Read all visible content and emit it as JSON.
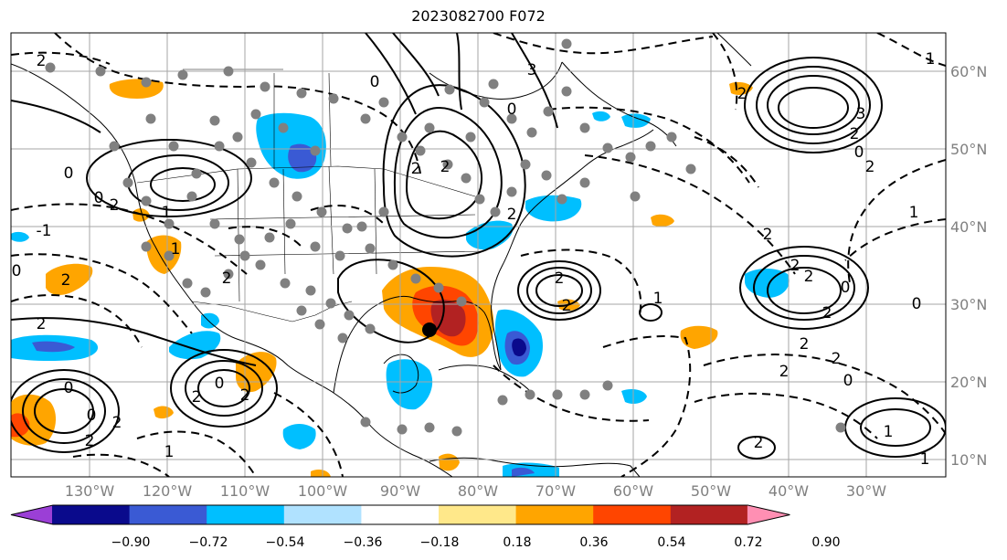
{
  "title": "2023082700 F072",
  "map": {
    "longitude_labels": [
      "130°W",
      "120°W",
      "110°W",
      "100°W",
      "90°W",
      "80°W",
      "70°W",
      "60°W",
      "50°W",
      "40°W",
      "30°W"
    ],
    "latitude_labels": [
      "60°N",
      "50°N",
      "40°N",
      "30°N",
      "20°N",
      "10°N"
    ],
    "contour_labels": [
      "2",
      "0",
      "2",
      "1",
      "2",
      "0",
      "-1",
      "0",
      "2",
      "1",
      "2",
      "0",
      "3",
      "2",
      "0",
      "2",
      "1",
      "2",
      "2",
      "0",
      "2",
      "0",
      "2",
      "2",
      "2",
      "0",
      "2",
      "1",
      "1",
      "2",
      "1",
      "2",
      "2",
      "2",
      "0",
      "3",
      "2",
      "2",
      "1",
      "1",
      "0",
      "0",
      "2",
      "2",
      "2",
      "2",
      "0",
      "2"
    ],
    "storm_marker": {
      "lon": -86.5,
      "lat": 26.5
    },
    "colors": {
      "grid": "#a6a6a6",
      "station_dots": "#808080",
      "marker": "#000000"
    }
  },
  "colorbar": {
    "tick_labels": [
      "−0.90",
      "−0.72",
      "−0.54",
      "−0.36",
      "−0.18",
      "0.18",
      "0.36",
      "0.54",
      "0.72",
      "0.90"
    ],
    "colors": [
      "#9b3fd6",
      "#0a0a8c",
      "#3a5ad4",
      "#00bfff",
      "#b0e2ff",
      "#ffffff",
      "#ffe88a",
      "#ffa500",
      "#ff4500",
      "#b22222",
      "#ff8fb3"
    ]
  }
}
